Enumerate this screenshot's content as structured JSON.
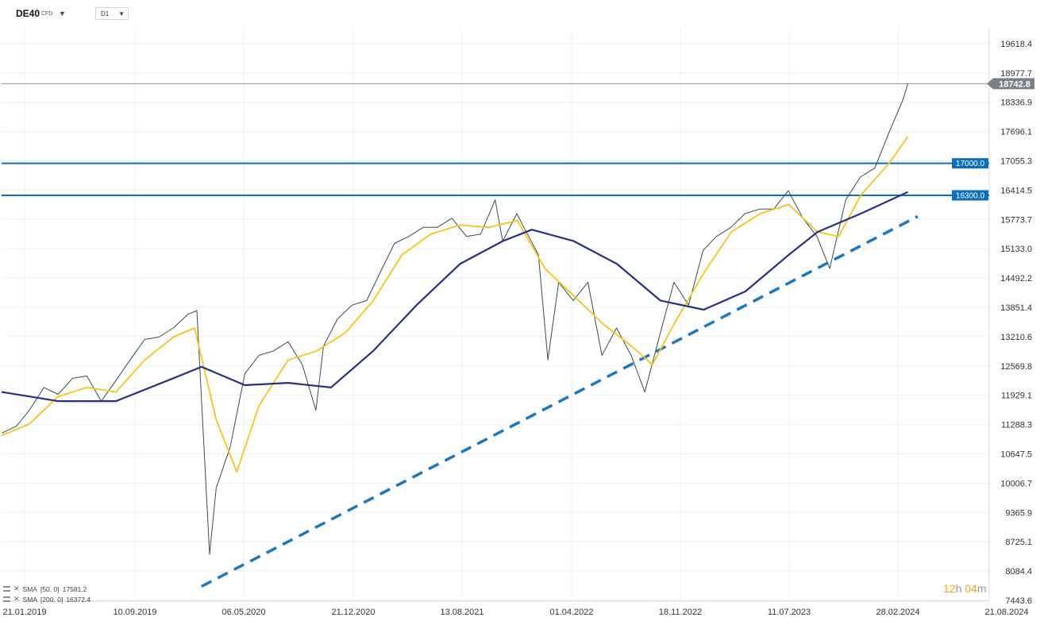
{
  "toolbar": {
    "symbol": "DE40",
    "symbol_type": "CFD",
    "timeframe": "D1",
    "dropdown_icon": "chevron-down-icon"
  },
  "legend": [
    {
      "label": "SMA",
      "params": "[50, 0]",
      "value": "17581.2",
      "color": "#f5c518"
    },
    {
      "label": "SMA",
      "params": "[200, 0]",
      "value": "16372.4",
      "color": "#2a2f85"
    }
  ],
  "timer": {
    "hours": "12",
    "h_unit": "h",
    "minutes": "04",
    "m_unit": "m"
  },
  "chart_data": {
    "type": "line",
    "title": "",
    "xlabel": "",
    "ylabel": "",
    "x_ticks": [
      "21.01.2019",
      "10.09.2019",
      "06.05.2020",
      "21.12.2020",
      "13.08.2021",
      "01.04.2022",
      "18.11.2022",
      "11.07.2023",
      "28.02.2024",
      "21.08.2024"
    ],
    "x_range": [
      "2019-01-01",
      "2024-09-30"
    ],
    "y_ticks": [
      "19618.4",
      "18977.7",
      "18336.9",
      "17696.1",
      "17055.3",
      "16414.5",
      "15773.7",
      "15133.0",
      "14492.2",
      "13851.4",
      "13210.6",
      "12569.8",
      "11929.1",
      "11288.3",
      "10647.5",
      "10006.7",
      "9365.9",
      "8725.1",
      "8084.4",
      "7443.6"
    ],
    "ylim": [
      7443.6,
      20259.2
    ],
    "grid": true,
    "last_price": "18742.8",
    "last_price_value": 18742.8,
    "horizontal_levels": [
      {
        "label": "17000.0",
        "value": 17000,
        "color": "#0a6fbd"
      },
      {
        "label": "16300.0",
        "value": 16300,
        "color": "#0a6fbd"
      }
    ],
    "trendline": {
      "style": "dashed",
      "color": "#1a78c2",
      "points": [
        [
          "2020-03-01",
          7750
        ],
        [
          "2024-05-01",
          15840
        ]
      ]
    },
    "series": [
      {
        "name": "DE40",
        "color": "#3b4a55",
        "points": [
          [
            "2019-01-01",
            11100
          ],
          [
            "2019-02-01",
            11250
          ],
          [
            "2019-03-01",
            11600
          ],
          [
            "2019-04-01",
            12100
          ],
          [
            "2019-05-01",
            11950
          ],
          [
            "2019-06-01",
            12300
          ],
          [
            "2019-07-01",
            12350
          ],
          [
            "2019-08-01",
            11800
          ],
          [
            "2019-09-01",
            12250
          ],
          [
            "2019-10-01",
            12700
          ],
          [
            "2019-11-01",
            13150
          ],
          [
            "2019-12-01",
            13200
          ],
          [
            "2020-01-01",
            13400
          ],
          [
            "2020-02-01",
            13700
          ],
          [
            "2020-02-20",
            13780
          ],
          [
            "2020-03-01",
            11800
          ],
          [
            "2020-03-18",
            8450
          ],
          [
            "2020-04-01",
            9900
          ],
          [
            "2020-05-01",
            10800
          ],
          [
            "2020-06-01",
            12400
          ],
          [
            "2020-07-01",
            12800
          ],
          [
            "2020-08-01",
            12900
          ],
          [
            "2020-09-01",
            13100
          ],
          [
            "2020-10-01",
            12600
          ],
          [
            "2020-10-30",
            11600
          ],
          [
            "2020-11-15",
            13000
          ],
          [
            "2020-12-15",
            13600
          ],
          [
            "2021-01-15",
            13900
          ],
          [
            "2021-02-15",
            14000
          ],
          [
            "2021-03-15",
            14600
          ],
          [
            "2021-04-15",
            15250
          ],
          [
            "2021-05-15",
            15400
          ],
          [
            "2021-06-15",
            15600
          ],
          [
            "2021-07-15",
            15600
          ],
          [
            "2021-08-15",
            15800
          ],
          [
            "2021-09-15",
            15400
          ],
          [
            "2021-10-15",
            15450
          ],
          [
            "2021-11-15",
            16200
          ],
          [
            "2021-12-01",
            15300
          ],
          [
            "2021-12-31",
            15900
          ],
          [
            "2022-01-15",
            15600
          ],
          [
            "2022-02-15",
            15000
          ],
          [
            "2022-03-07",
            12700
          ],
          [
            "2022-03-30",
            14400
          ],
          [
            "2022-04-30",
            14000
          ],
          [
            "2022-05-31",
            14400
          ],
          [
            "2022-06-30",
            12800
          ],
          [
            "2022-07-31",
            13400
          ],
          [
            "2022-08-31",
            12800
          ],
          [
            "2022-09-29",
            12000
          ],
          [
            "2022-10-31",
            13250
          ],
          [
            "2022-11-30",
            14400
          ],
          [
            "2022-12-31",
            13900
          ],
          [
            "2023-01-31",
            15100
          ],
          [
            "2023-02-28",
            15400
          ],
          [
            "2023-03-31",
            15600
          ],
          [
            "2023-04-30",
            15900
          ],
          [
            "2023-05-31",
            16000
          ],
          [
            "2023-06-30",
            16000
          ],
          [
            "2023-07-31",
            16400
          ],
          [
            "2023-08-31",
            15800
          ],
          [
            "2023-09-30",
            15400
          ],
          [
            "2023-10-27",
            14700
          ],
          [
            "2023-11-30",
            16200
          ],
          [
            "2023-12-31",
            16700
          ],
          [
            "2024-01-31",
            16900
          ],
          [
            "2024-02-29",
            17650
          ],
          [
            "2024-03-31",
            18400
          ],
          [
            "2024-04-10",
            18742.8
          ]
        ]
      },
      {
        "name": "SMA [50, 0]",
        "color": "#f5c518",
        "points": [
          [
            "2019-01-01",
            11050
          ],
          [
            "2019-03-01",
            11300
          ],
          [
            "2019-05-01",
            11900
          ],
          [
            "2019-07-01",
            12100
          ],
          [
            "2019-09-01",
            12000
          ],
          [
            "2019-11-01",
            12700
          ],
          [
            "2020-01-01",
            13200
          ],
          [
            "2020-02-15",
            13400
          ],
          [
            "2020-04-01",
            11400
          ],
          [
            "2020-05-15",
            10250
          ],
          [
            "2020-07-01",
            11700
          ],
          [
            "2020-09-01",
            12700
          ],
          [
            "2020-11-01",
            12900
          ],
          [
            "2021-01-01",
            13300
          ],
          [
            "2021-03-01",
            14000
          ],
          [
            "2021-05-01",
            15000
          ],
          [
            "2021-07-01",
            15450
          ],
          [
            "2021-09-01",
            15650
          ],
          [
            "2021-11-01",
            15600
          ],
          [
            "2022-01-01",
            15750
          ],
          [
            "2022-03-01",
            14700
          ],
          [
            "2022-05-01",
            14100
          ],
          [
            "2022-07-01",
            13500
          ],
          [
            "2022-09-01",
            13000
          ],
          [
            "2022-10-15",
            12600
          ],
          [
            "2022-12-01",
            13500
          ],
          [
            "2023-02-01",
            14600
          ],
          [
            "2023-04-01",
            15500
          ],
          [
            "2023-06-01",
            15900
          ],
          [
            "2023-08-01",
            16100
          ],
          [
            "2023-10-01",
            15500
          ],
          [
            "2023-11-15",
            15400
          ],
          [
            "2024-01-01",
            16300
          ],
          [
            "2024-03-01",
            17000
          ],
          [
            "2024-04-10",
            17581.2
          ]
        ]
      },
      {
        "name": "SMA [200, 0]",
        "color": "#2a2f85",
        "points": [
          [
            "2019-01-01",
            12000
          ],
          [
            "2019-05-01",
            11800
          ],
          [
            "2019-09-01",
            11800
          ],
          [
            "2020-01-01",
            12300
          ],
          [
            "2020-03-01",
            12550
          ],
          [
            "2020-06-01",
            12150
          ],
          [
            "2020-09-01",
            12200
          ],
          [
            "2020-12-01",
            12100
          ],
          [
            "2021-03-01",
            12900
          ],
          [
            "2021-06-01",
            13900
          ],
          [
            "2021-09-01",
            14800
          ],
          [
            "2021-12-01",
            15300
          ],
          [
            "2022-02-01",
            15550
          ],
          [
            "2022-05-01",
            15300
          ],
          [
            "2022-08-01",
            14800
          ],
          [
            "2022-11-01",
            14000
          ],
          [
            "2023-02-01",
            13800
          ],
          [
            "2023-05-01",
            14200
          ],
          [
            "2023-08-01",
            15000
          ],
          [
            "2023-10-01",
            15500
          ],
          [
            "2024-01-01",
            15900
          ],
          [
            "2024-04-10",
            16372.4
          ]
        ]
      }
    ]
  }
}
